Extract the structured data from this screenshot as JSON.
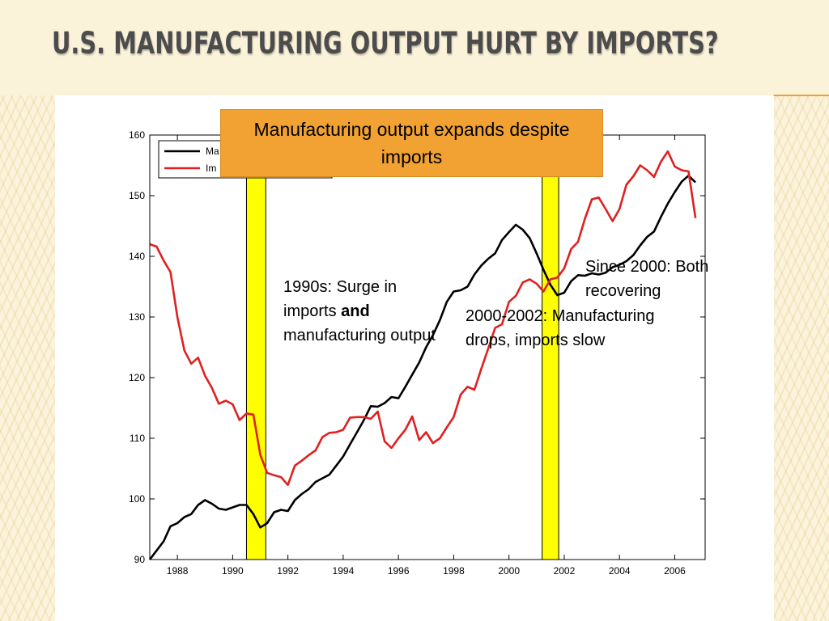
{
  "slide": {
    "title": "U.S. Manufacturing Output Hurt by Imports?"
  },
  "colors": {
    "manufacturing": "#000000",
    "imports": "#e02020",
    "recession_band": "#ffff00",
    "callout": "#f2a232"
  },
  "callout": {
    "text": "Manufacturing output expands despite imports"
  },
  "annotations": {
    "surge_1990s": {
      "prefix": "1990s: Surge in imports ",
      "bold": "and",
      "suffix": " manufacturing output"
    },
    "drop_2000": "2000-2002: Manufacturing drops, imports slow",
    "since_2000": "Since 2000: Both recovering"
  },
  "chart_data": {
    "type": "line",
    "title": "",
    "xlabel": "",
    "ylabel": "",
    "xlim": [
      1987,
      2007.1
    ],
    "ylim": [
      90,
      160
    ],
    "x_ticks": [
      1988,
      1990,
      1992,
      1994,
      1996,
      1998,
      2000,
      2002,
      2004,
      2006
    ],
    "y_ticks": [
      90,
      100,
      110,
      120,
      130,
      140,
      150,
      160
    ],
    "grid": false,
    "legend_position": "top-left",
    "legend_entries": [
      "Ma",
      "Im"
    ],
    "recession_bands": [
      [
        1990.5,
        1991.2
      ],
      [
        2001.2,
        2001.8
      ]
    ],
    "series": [
      {
        "name": "Ma",
        "color": "#000000",
        "points": [
          [
            1987.0,
            90.0
          ],
          [
            1987.25,
            91.5
          ],
          [
            1987.5,
            93.0
          ],
          [
            1987.75,
            95.5
          ],
          [
            1988.0,
            96.0
          ],
          [
            1988.25,
            97.0
          ],
          [
            1988.5,
            97.5
          ],
          [
            1988.75,
            99.0
          ],
          [
            1989.0,
            99.8
          ],
          [
            1989.25,
            99.2
          ],
          [
            1989.5,
            98.4
          ],
          [
            1989.75,
            98.2
          ],
          [
            1990.0,
            98.6
          ],
          [
            1990.25,
            99.0
          ],
          [
            1990.5,
            99.0
          ],
          [
            1990.75,
            97.5
          ],
          [
            1991.0,
            95.3
          ],
          [
            1991.25,
            96.0
          ],
          [
            1991.5,
            97.8
          ],
          [
            1991.75,
            98.2
          ],
          [
            1992.0,
            98.0
          ],
          [
            1992.25,
            99.8
          ],
          [
            1992.5,
            100.8
          ],
          [
            1992.75,
            101.6
          ],
          [
            1993.0,
            102.8
          ],
          [
            1993.25,
            103.4
          ],
          [
            1993.5,
            104.0
          ],
          [
            1993.75,
            105.5
          ],
          [
            1994.0,
            107.0
          ],
          [
            1994.25,
            109.0
          ],
          [
            1994.5,
            111.0
          ],
          [
            1994.75,
            113.0
          ],
          [
            1995.0,
            115.3
          ],
          [
            1995.25,
            115.2
          ],
          [
            1995.5,
            115.8
          ],
          [
            1995.75,
            116.8
          ],
          [
            1996.0,
            116.6
          ],
          [
            1996.25,
            118.5
          ],
          [
            1996.5,
            120.5
          ],
          [
            1996.75,
            122.5
          ],
          [
            1997.0,
            125.0
          ],
          [
            1997.25,
            127.0
          ],
          [
            1997.5,
            129.5
          ],
          [
            1997.75,
            132.5
          ],
          [
            1998.0,
            134.2
          ],
          [
            1998.25,
            134.4
          ],
          [
            1998.5,
            135.0
          ],
          [
            1998.75,
            137.0
          ],
          [
            1999.0,
            138.5
          ],
          [
            1999.25,
            139.6
          ],
          [
            1999.5,
            140.5
          ],
          [
            1999.75,
            142.7
          ],
          [
            2000.0,
            144.0
          ],
          [
            2000.25,
            145.2
          ],
          [
            2000.5,
            144.4
          ],
          [
            2000.75,
            143.0
          ],
          [
            2001.0,
            140.5
          ],
          [
            2001.25,
            137.8
          ],
          [
            2001.5,
            135.3
          ],
          [
            2001.75,
            133.6
          ],
          [
            2002.0,
            134.0
          ],
          [
            2002.25,
            135.9
          ],
          [
            2002.5,
            136.9
          ],
          [
            2002.75,
            136.8
          ],
          [
            2003.0,
            137.2
          ],
          [
            2003.25,
            137.0
          ],
          [
            2003.5,
            137.3
          ],
          [
            2003.75,
            138.2
          ],
          [
            2004.0,
            138.6
          ],
          [
            2004.25,
            139.2
          ],
          [
            2004.5,
            140.2
          ],
          [
            2004.75,
            141.8
          ],
          [
            2005.0,
            143.2
          ],
          [
            2005.25,
            144.1
          ],
          [
            2005.5,
            146.5
          ],
          [
            2005.75,
            148.7
          ],
          [
            2006.0,
            150.6
          ],
          [
            2006.25,
            152.3
          ],
          [
            2006.5,
            153.3
          ],
          [
            2006.75,
            152.2
          ]
        ]
      },
      {
        "name": "Im",
        "color": "#e02020",
        "points": [
          [
            1987.0,
            142.0
          ],
          [
            1987.25,
            141.6
          ],
          [
            1987.5,
            139.3
          ],
          [
            1987.75,
            137.4
          ],
          [
            1988.0,
            130.0
          ],
          [
            1988.25,
            124.5
          ],
          [
            1988.5,
            122.3
          ],
          [
            1988.75,
            123.3
          ],
          [
            1989.0,
            120.3
          ],
          [
            1989.25,
            118.3
          ],
          [
            1989.5,
            115.7
          ],
          [
            1989.75,
            116.2
          ],
          [
            1990.0,
            115.6
          ],
          [
            1990.25,
            113.0
          ],
          [
            1990.5,
            114.1
          ],
          [
            1990.75,
            113.9
          ],
          [
            1991.0,
            107.3
          ],
          [
            1991.25,
            104.3
          ],
          [
            1991.5,
            103.9
          ],
          [
            1991.75,
            103.6
          ],
          [
            1992.0,
            102.3
          ],
          [
            1992.25,
            105.5
          ],
          [
            1992.5,
            106.3
          ],
          [
            1992.75,
            107.2
          ],
          [
            1993.0,
            108.0
          ],
          [
            1993.25,
            110.2
          ],
          [
            1993.5,
            110.9
          ],
          [
            1993.75,
            111.0
          ],
          [
            1994.0,
            111.4
          ],
          [
            1994.25,
            113.4
          ],
          [
            1994.5,
            113.5
          ],
          [
            1994.75,
            113.5
          ],
          [
            1995.0,
            113.2
          ],
          [
            1995.25,
            114.4
          ],
          [
            1995.5,
            109.5
          ],
          [
            1995.75,
            108.4
          ],
          [
            1996.0,
            110.0
          ],
          [
            1996.25,
            111.4
          ],
          [
            1996.5,
            113.6
          ],
          [
            1996.75,
            109.7
          ],
          [
            1997.0,
            111.0
          ],
          [
            1997.25,
            109.2
          ],
          [
            1997.5,
            110.0
          ],
          [
            1997.75,
            111.8
          ],
          [
            1998.0,
            113.5
          ],
          [
            1998.25,
            117.2
          ],
          [
            1998.5,
            118.5
          ],
          [
            1998.75,
            118.0
          ],
          [
            1999.0,
            121.5
          ],
          [
            1999.25,
            124.8
          ],
          [
            1999.5,
            128.2
          ],
          [
            1999.75,
            128.8
          ],
          [
            2000.0,
            132.5
          ],
          [
            2000.25,
            133.5
          ],
          [
            2000.5,
            135.7
          ],
          [
            2000.75,
            136.2
          ],
          [
            2001.0,
            135.5
          ],
          [
            2001.25,
            134.2
          ],
          [
            2001.5,
            136.2
          ],
          [
            2001.75,
            136.5
          ],
          [
            2002.0,
            138.0
          ],
          [
            2002.25,
            141.2
          ],
          [
            2002.5,
            142.4
          ],
          [
            2002.75,
            146.2
          ],
          [
            2003.0,
            149.4
          ],
          [
            2003.25,
            149.7
          ],
          [
            2003.5,
            147.8
          ],
          [
            2003.75,
            145.8
          ],
          [
            2004.0,
            147.8
          ],
          [
            2004.25,
            151.8
          ],
          [
            2004.5,
            153.2
          ],
          [
            2004.75,
            155.0
          ],
          [
            2005.0,
            154.2
          ],
          [
            2005.25,
            153.1
          ],
          [
            2005.5,
            155.6
          ],
          [
            2005.75,
            157.3
          ],
          [
            2006.0,
            154.8
          ],
          [
            2006.25,
            154.2
          ],
          [
            2006.5,
            154.0
          ],
          [
            2006.75,
            146.3
          ]
        ]
      }
    ]
  }
}
